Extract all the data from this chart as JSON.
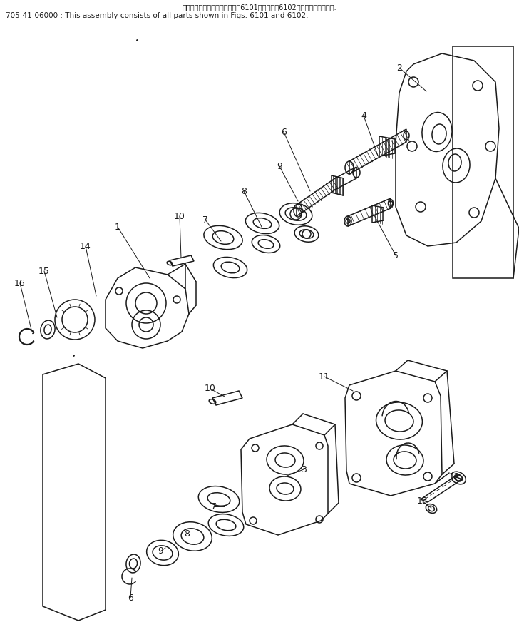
{
  "title_line1": "このアセンブリの構成部品は、6101図および、6102図の部品を含みます.",
  "title_line2": "705-41-06000 : This assembly consists of all parts shown in Figs. 6101 and 6102.",
  "bg_color": "#ffffff",
  "lc": "#1a1a1a",
  "figsize": [
    7.28,
    8.86
  ],
  "dpi": 100
}
